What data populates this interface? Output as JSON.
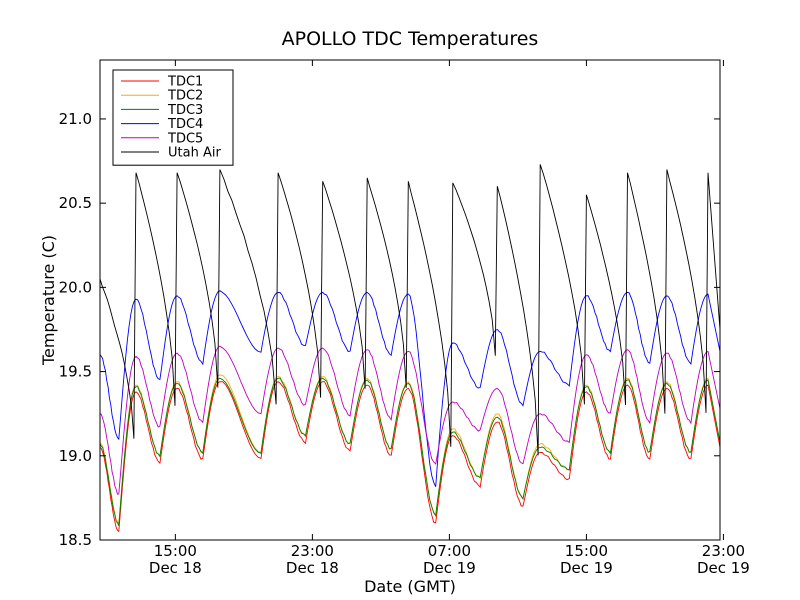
{
  "chart_data": {
    "type": "line",
    "title": "APOLLO TDC Temperatures",
    "xlabel": "Date (GMT)",
    "ylabel": "Temperature (C)",
    "ylim": [
      18.5,
      21.35
    ],
    "xlim_hours": [
      0,
      36.2
    ],
    "grid": false,
    "legend_position": "top-left",
    "y_ticks": [
      18.5,
      19.0,
      19.5,
      20.0,
      20.5,
      21.0
    ],
    "y_tick_labels": [
      "18.5",
      "19.0",
      "19.5",
      "20.0",
      "20.5",
      "21.0"
    ],
    "x_ticks": [
      {
        "hours": 4.4,
        "time": "15:00",
        "date": "Dec 18"
      },
      {
        "hours": 12.4,
        "time": "23:00",
        "date": "Dec 18"
      },
      {
        "hours": 20.4,
        "time": "07:00",
        "date": "Dec 19"
      },
      {
        "hours": 28.4,
        "time": "15:00",
        "date": "Dec 19"
      },
      {
        "hours": 36.4,
        "time": "23:00",
        "date": "Dec 19"
      }
    ],
    "cycle_period_hours": 2.4,
    "peak_times_hours": [
      2.1,
      4.5,
      7.0,
      10.4,
      13.0,
      15.6,
      18.0,
      20.6,
      23.2,
      25.7,
      28.4,
      30.8,
      33.1,
      35.5
    ],
    "series": [
      {
        "name": "TDC1",
        "color": "#ff0000",
        "minima": [
          19.05,
          18.55,
          18.96,
          18.98,
          18.98,
          19.08,
          19.03,
          19.0,
          18.6,
          18.82,
          18.7,
          18.86,
          18.98,
          18.98,
          18.98,
          19.05
        ],
        "peaks": [
          19.38,
          19.4,
          19.44,
          19.44,
          19.44,
          19.42,
          19.4,
          19.12,
          19.2,
          19.02,
          19.38,
          19.42,
          19.4,
          19.42
        ]
      },
      {
        "name": "TDC2",
        "color": "#ffaa00",
        "minima": [
          19.08,
          18.6,
          19.0,
          19.02,
          19.02,
          19.12,
          19.07,
          19.04,
          18.65,
          18.87,
          18.75,
          18.92,
          19.02,
          19.02,
          19.02,
          19.08
        ],
        "peaks": [
          19.42,
          19.44,
          19.48,
          19.47,
          19.47,
          19.46,
          19.44,
          19.16,
          19.25,
          19.07,
          19.42,
          19.46,
          19.44,
          19.46
        ]
      },
      {
        "name": "TDC3",
        "color": "#008000",
        "minima": [
          19.07,
          18.59,
          19.0,
          19.02,
          19.02,
          19.12,
          19.07,
          19.04,
          18.65,
          18.87,
          18.75,
          18.92,
          19.02,
          19.02,
          19.02,
          19.08
        ],
        "peaks": [
          19.41,
          19.43,
          19.46,
          19.46,
          19.46,
          19.45,
          19.43,
          19.14,
          19.23,
          19.05,
          19.41,
          19.45,
          19.43,
          19.45
        ]
      },
      {
        "name": "TDC4",
        "color": "#0000ff",
        "minima": [
          19.6,
          19.1,
          19.45,
          19.55,
          19.62,
          19.65,
          19.62,
          19.6,
          18.82,
          19.4,
          19.3,
          19.42,
          19.62,
          19.55,
          19.55,
          19.62
        ],
        "peaks": [
          19.93,
          19.95,
          19.98,
          19.97,
          19.97,
          19.97,
          19.96,
          19.67,
          19.75,
          19.62,
          19.95,
          19.97,
          19.95,
          19.96
        ]
      },
      {
        "name": "TDC5",
        "color": "#bf00bf",
        "minima": [
          19.25,
          18.77,
          19.17,
          19.2,
          19.25,
          19.3,
          19.24,
          19.22,
          18.95,
          19.15,
          18.95,
          19.08,
          19.25,
          19.2,
          19.2,
          19.28
        ],
        "peaks": [
          19.59,
          19.61,
          19.65,
          19.64,
          19.64,
          19.63,
          19.62,
          19.32,
          19.4,
          19.25,
          19.6,
          19.63,
          19.61,
          19.62
        ]
      },
      {
        "name": "Utah Air",
        "color": "#000000",
        "minima": [
          20.05,
          19.1,
          19.3,
          19.4,
          19.3,
          19.35,
          19.4,
          19.4,
          19.05,
          19.6,
          19.0,
          19.3,
          19.3,
          19.25,
          19.25,
          19.75
        ],
        "peaks": [
          20.68,
          20.68,
          20.7,
          20.68,
          20.63,
          20.65,
          20.63,
          20.62,
          20.6,
          20.73,
          20.55,
          20.68,
          20.7,
          20.68
        ]
      }
    ]
  }
}
